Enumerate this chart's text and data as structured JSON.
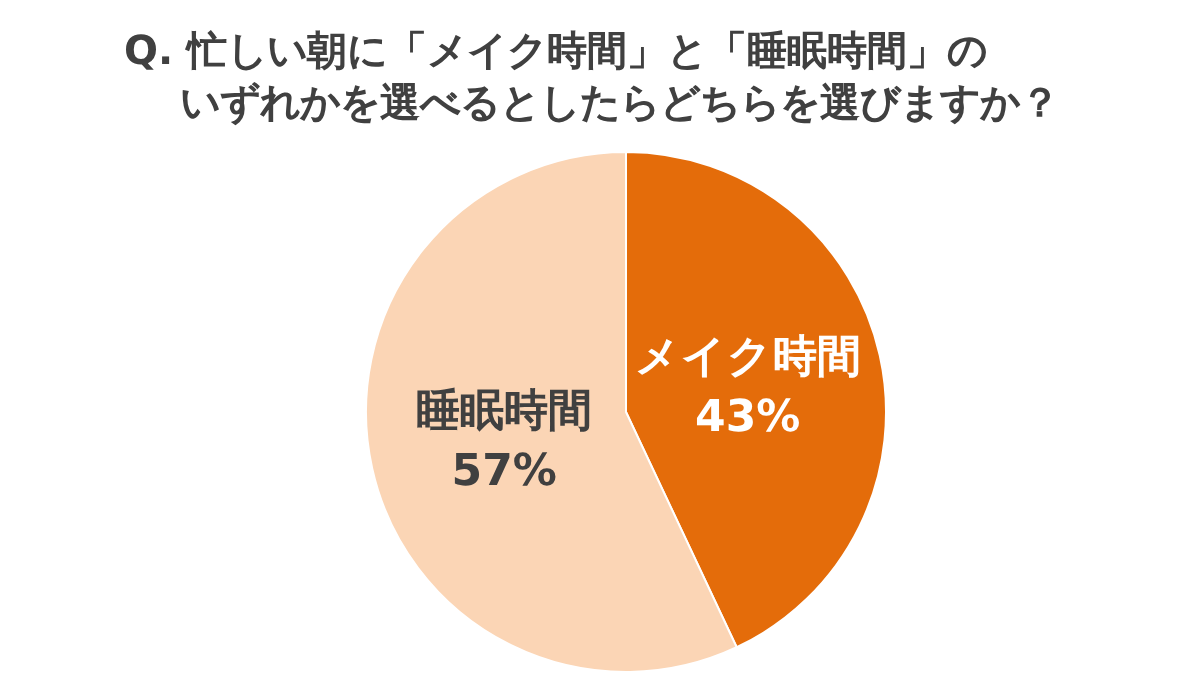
{
  "chart_data": {
    "type": "pie",
    "title": "Q.  忙しい朝に「メイク時間」と「睡眠時間」のいずれかを選べるとしたらどちらを選びますか？",
    "categories": [
      "メイク時間",
      "睡眠時間"
    ],
    "values": [
      43,
      57
    ],
    "value_labels": [
      "43%",
      "57%"
    ],
    "colors": [
      "#e46c0a",
      "#fbd5b5"
    ],
    "legend": false
  }
}
